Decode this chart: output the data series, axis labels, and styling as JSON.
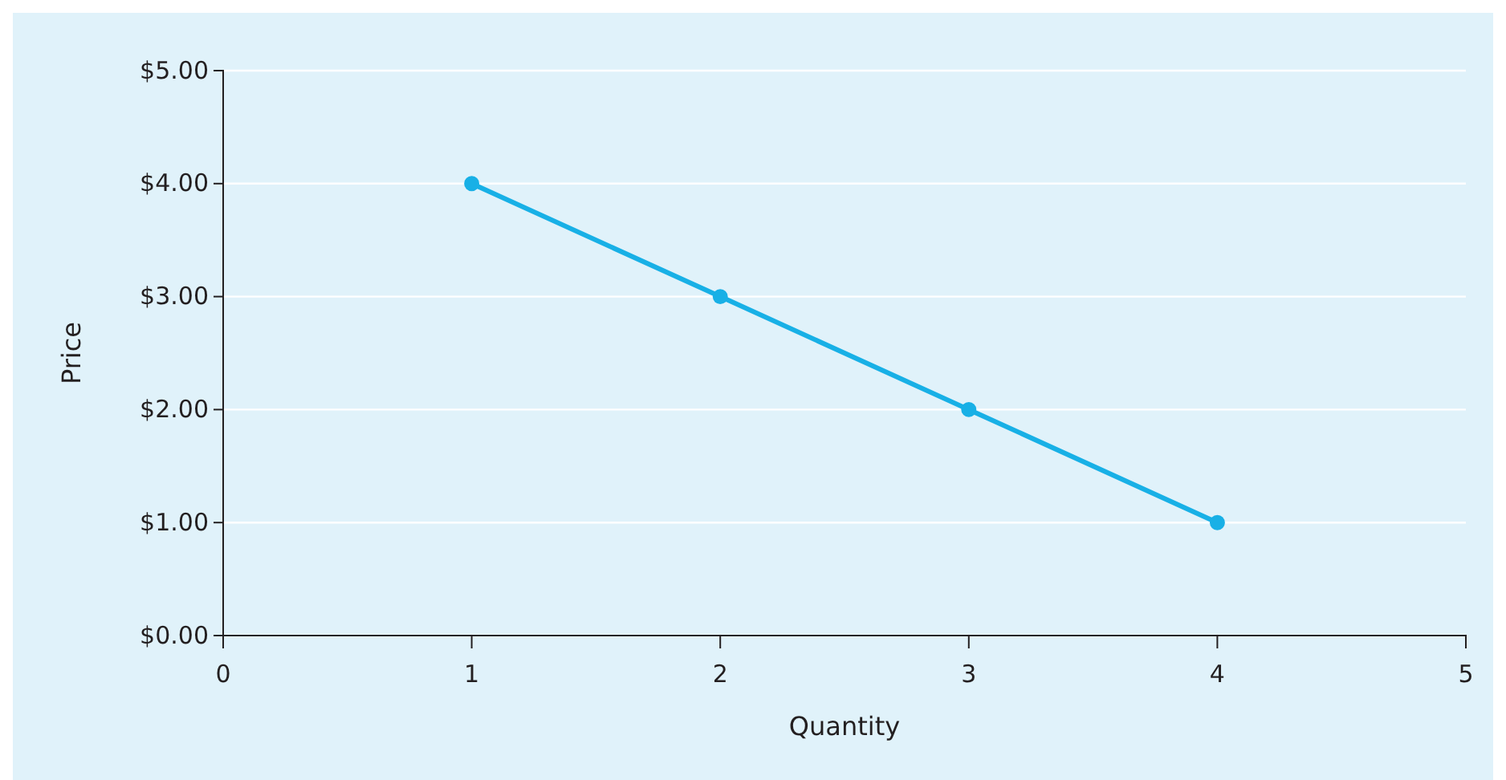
{
  "chart_data": {
    "type": "line",
    "xlabel": "Quantity",
    "ylabel": "Price",
    "x": [
      1,
      2,
      3,
      4
    ],
    "series": [
      {
        "color": "#18b0e6",
        "values": [
          4,
          3,
          2,
          1
        ]
      }
    ],
    "xlim": [
      0,
      5
    ],
    "xticks": [
      0,
      1,
      2,
      3,
      4,
      5
    ],
    "ylim": [
      0,
      5
    ],
    "yticks": [
      {
        "value": 0,
        "label": "$0.00"
      },
      {
        "value": 1,
        "label": "$1.00"
      },
      {
        "value": 2,
        "label": "$2.00"
      },
      {
        "value": 3,
        "label": "$3.00"
      },
      {
        "value": 4,
        "label": "$4.00"
      },
      {
        "value": 5,
        "label": "$5.00"
      }
    ],
    "grid": "y",
    "marker": "circle",
    "line_style": "solid"
  }
}
